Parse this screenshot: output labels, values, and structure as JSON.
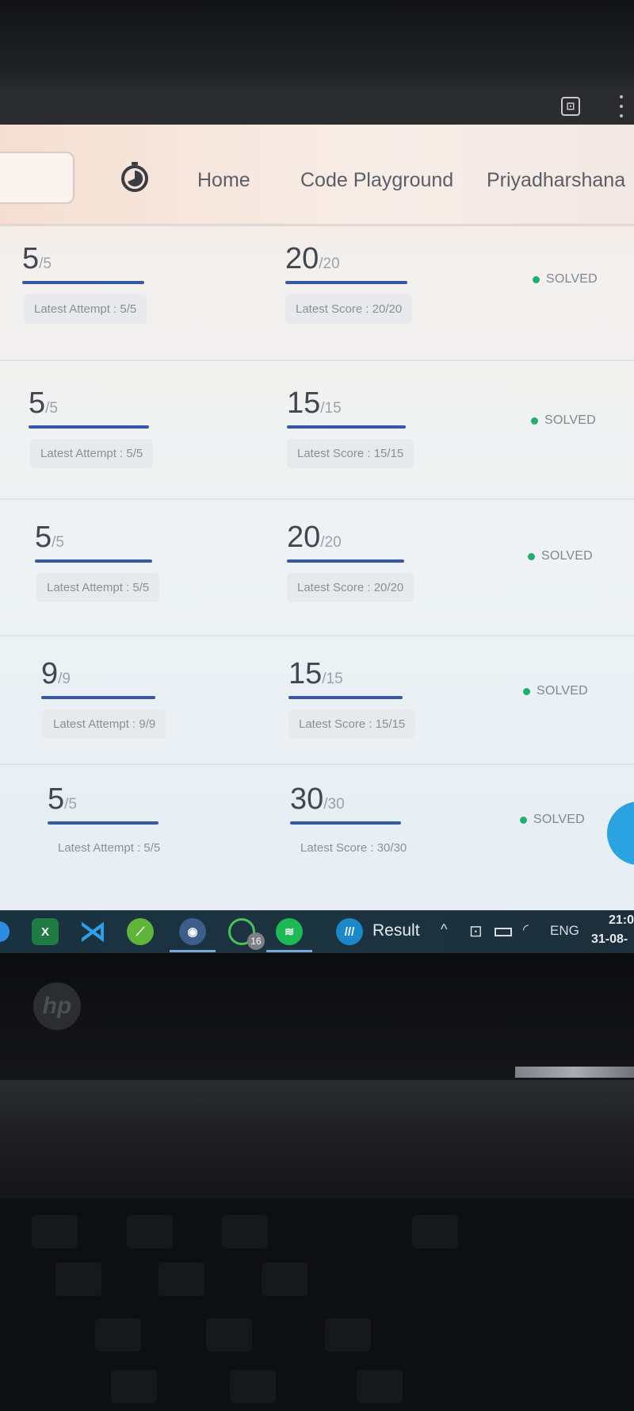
{
  "nav": {
    "links": [
      "Home",
      "Code Playground",
      "Priyadharshana"
    ]
  },
  "rows": [
    {
      "attempt": {
        "value": "5",
        "total": "/5",
        "label": "Latest Attempt : 5/5"
      },
      "score": {
        "value": "20",
        "total": "/20",
        "label": "Latest Score : 20/20"
      },
      "status": "SOLVED"
    },
    {
      "attempt": {
        "value": "5",
        "total": "/5",
        "label": "Latest Attempt : 5/5"
      },
      "score": {
        "value": "15",
        "total": "/15",
        "label": "Latest Score : 15/15"
      },
      "status": "SOLVED"
    },
    {
      "attempt": {
        "value": "5",
        "total": "/5",
        "label": "Latest Attempt : 5/5"
      },
      "score": {
        "value": "20",
        "total": "/20",
        "label": "Latest Score : 20/20"
      },
      "status": "SOLVED"
    },
    {
      "attempt": {
        "value": "9",
        "total": "/9",
        "label": "Latest Attempt : 9/9"
      },
      "score": {
        "value": "15",
        "total": "/15",
        "label": "Latest Score : 15/15"
      },
      "status": "SOLVED"
    },
    {
      "attempt": {
        "value": "5",
        "total": "/5",
        "label": "Latest Attempt : 5/5"
      },
      "score": {
        "value": "30",
        "total": "/30",
        "label": "Latest Score : 30/30"
      },
      "status": "SOLVED"
    }
  ],
  "taskbar": {
    "whatsapp_badge": "16",
    "result_label": "Result",
    "language": "ENG",
    "time": "21:0",
    "date": "31-08-"
  },
  "laptop": {
    "brand": "hp"
  },
  "colors": {
    "accent": "#3658a8",
    "solved": "#1fae6f",
    "fab": "#2aa3e0"
  },
  "icons": [
    "timer-icon",
    "excel-icon",
    "vscode-icon",
    "chrome-icon",
    "whatsapp-icon",
    "spotify-icon",
    "wifi-icon",
    "battery-icon"
  ]
}
